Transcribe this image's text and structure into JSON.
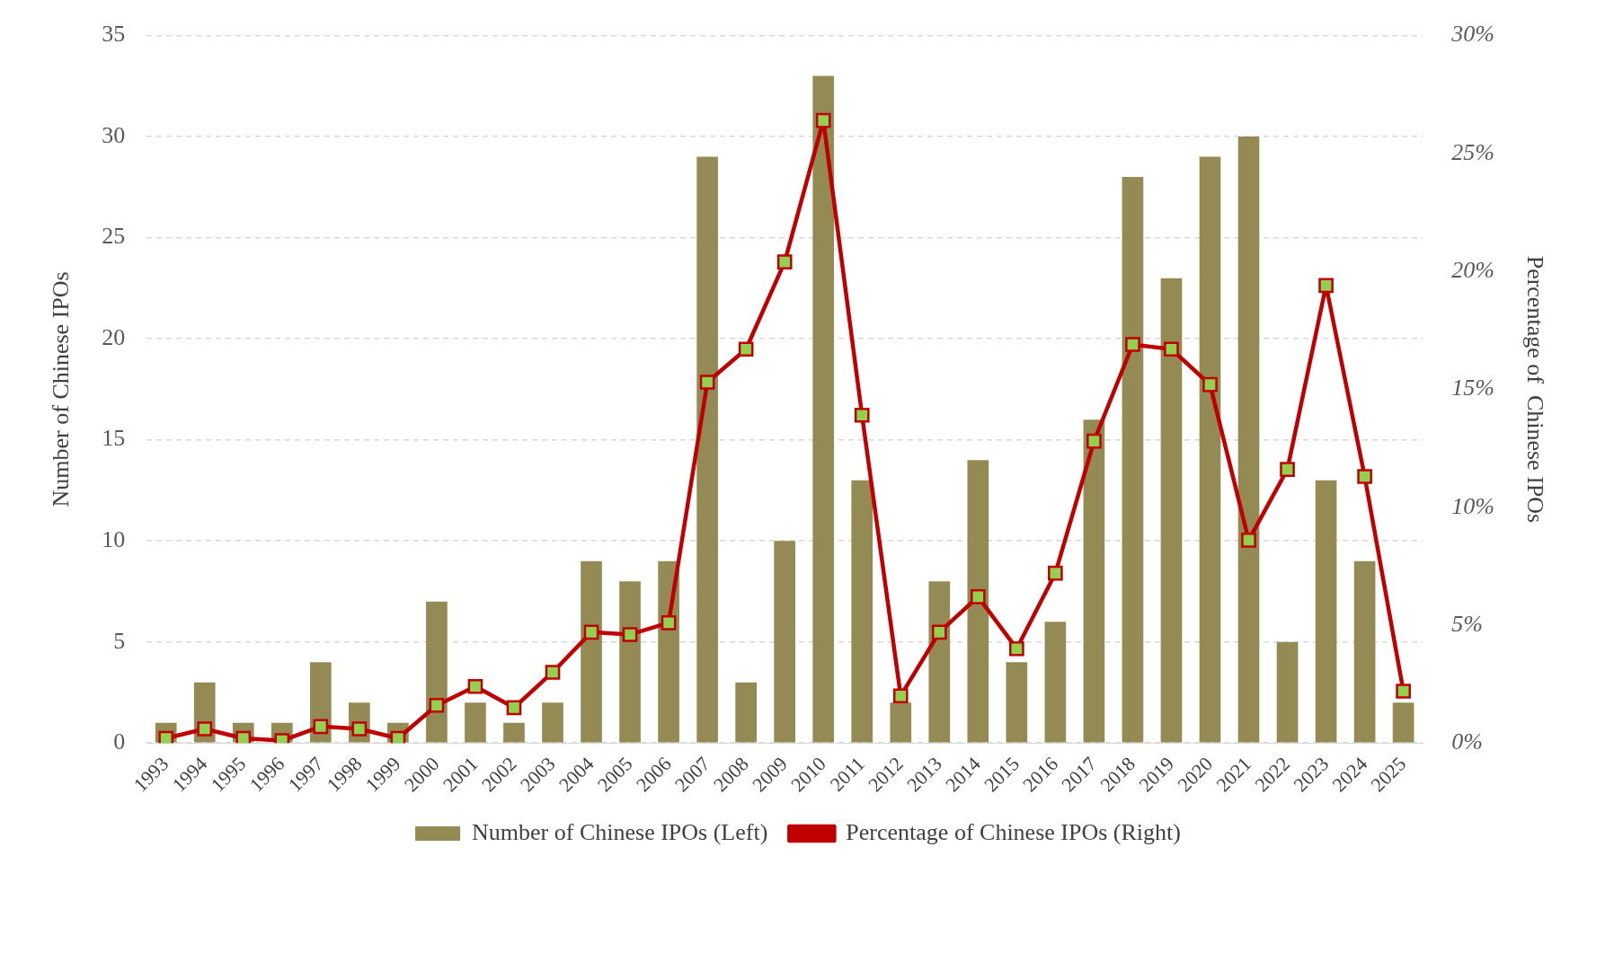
{
  "chart_data": {
    "type": "bar",
    "categories": [
      "1993",
      "1994",
      "1995",
      "1996",
      "1997",
      "1998",
      "1999",
      "2000",
      "2001",
      "2002",
      "2003",
      "2004",
      "2005",
      "2006",
      "2007",
      "2008",
      "2009",
      "2010",
      "2011",
      "2012",
      "2013",
      "2014",
      "2015",
      "2016",
      "2017",
      "2018",
      "2019",
      "2020",
      "2021",
      "2022",
      "2023",
      "2024",
      "2025"
    ],
    "ylabel": "Number of Chinese IPOs",
    "y2label": "Percentage of  Chinese IPOs",
    "series": [
      {
        "name": "Number of Chinese IPOs (Left)",
        "color": "#948b54",
        "values": [
          1,
          3,
          1,
          1,
          4,
          2,
          1,
          7,
          2,
          1,
          2,
          9,
          8,
          9,
          29,
          3,
          10,
          33,
          13,
          2,
          8,
          14,
          4,
          6,
          16,
          28,
          23,
          29,
          30,
          5,
          13,
          9,
          2
        ]
      },
      {
        "name": "Percentage of Chinese IPOs (Right)",
        "type": "line",
        "axis": "y2",
        "color": "#c00000",
        "marker": "square",
        "values": [
          0.2,
          0.6,
          0.2,
          0.1,
          0.7,
          0.6,
          0.2,
          1.6,
          2.4,
          1.5,
          3.0,
          4.7,
          4.6,
          5.1,
          15.3,
          16.7,
          20.4,
          26.4,
          13.9,
          2.0,
          4.7,
          6.2,
          4.0,
          7.2,
          12.8,
          16.9,
          16.7,
          15.2,
          8.6,
          11.6,
          19.4,
          11.3,
          2.2
        ]
      }
    ],
    "ylim": [
      0,
      35
    ],
    "yticks": [
      0,
      5,
      10,
      15,
      20,
      25,
      30,
      35
    ],
    "y2lim": [
      0,
      30
    ],
    "y2ticks": [
      {
        "value": 0,
        "label": "0%"
      },
      {
        "value": 5,
        "label": "5%"
      },
      {
        "value": 10,
        "label": "10%"
      },
      {
        "value": 15,
        "label": "15%"
      },
      {
        "value": 20,
        "label": "20%"
      },
      {
        "value": 25,
        "label": "25%"
      },
      {
        "value": 30,
        "label": "30%"
      }
    ],
    "grid": "y",
    "legend": "bottom"
  }
}
